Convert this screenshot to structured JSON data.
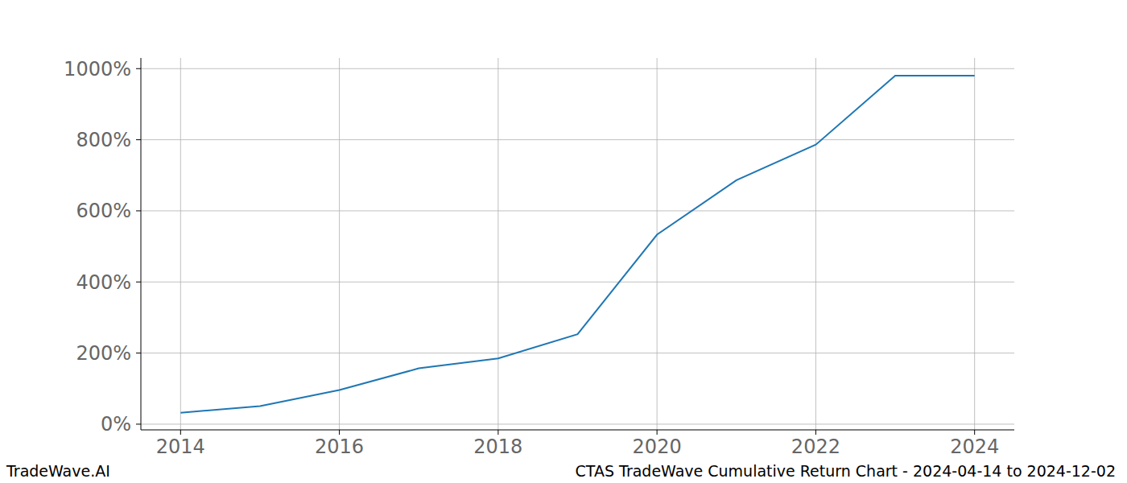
{
  "chart_data": {
    "type": "line",
    "title": "CTAS TradeWave Cumulative Return Chart - 2024-04-14 to 2024-12-02",
    "annotations": [
      "TradeWave.AI"
    ],
    "x": [
      2014,
      2015,
      2016,
      2017,
      2018,
      2019,
      2020,
      2021,
      2022,
      2023,
      2024
    ],
    "values": [
      32,
      51,
      96,
      157,
      185,
      253,
      533,
      686,
      786,
      980,
      980
    ],
    "color": "#1f77b4",
    "xlim": [
      2013.5,
      2024.5
    ],
    "xticks": [
      2014,
      2016,
      2018,
      2020,
      2022,
      2024
    ],
    "ylim": [
      -16,
      1030
    ],
    "yticks": [
      {
        "value": 0,
        "label": "0%"
      },
      {
        "value": 200,
        "label": "200%"
      },
      {
        "value": 400,
        "label": "400%"
      },
      {
        "value": 600,
        "label": "600%"
      },
      {
        "value": 800,
        "label": "800%"
      },
      {
        "value": 1000,
        "label": "1000%"
      }
    ],
    "grid": true
  }
}
